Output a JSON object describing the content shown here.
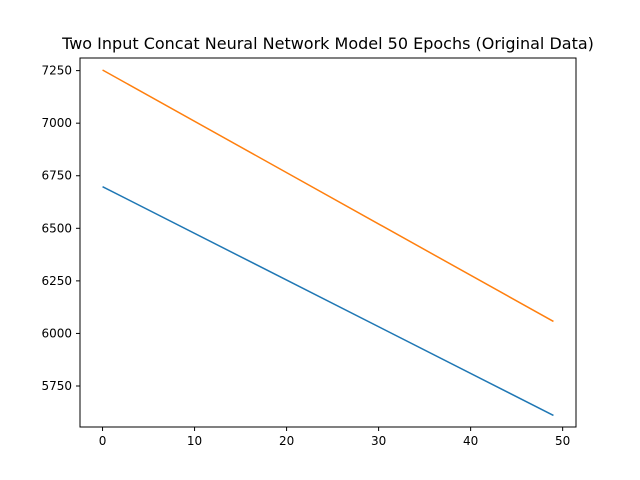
{
  "chart_data": {
    "type": "line",
    "title": "Two Input Concat Neural Network Model 50 Epochs (Original Data)",
    "xlabel": "",
    "ylabel": "",
    "xlim": [
      -2.45,
      51.45
    ],
    "ylim": [
      5555,
      7310
    ],
    "grid": false,
    "x_ticks": [
      0,
      10,
      20,
      30,
      40,
      50
    ],
    "y_ticks": [
      5750,
      6000,
      6250,
      6500,
      6750,
      7000,
      7250
    ],
    "x_tick_labels": [
      "0",
      "10",
      "20",
      "30",
      "40",
      "50"
    ],
    "y_tick_labels": [
      "5750",
      "6000",
      "6250",
      "6500",
      "6750",
      "7000",
      "7250"
    ],
    "series": [
      {
        "color": "#1f77b4",
        "x": [
          0,
          49
        ],
        "y": [
          6698,
          5610
        ]
      },
      {
        "color": "#ff7f0e",
        "x": [
          0,
          49
        ],
        "y": [
          7253,
          6057
        ]
      }
    ]
  }
}
